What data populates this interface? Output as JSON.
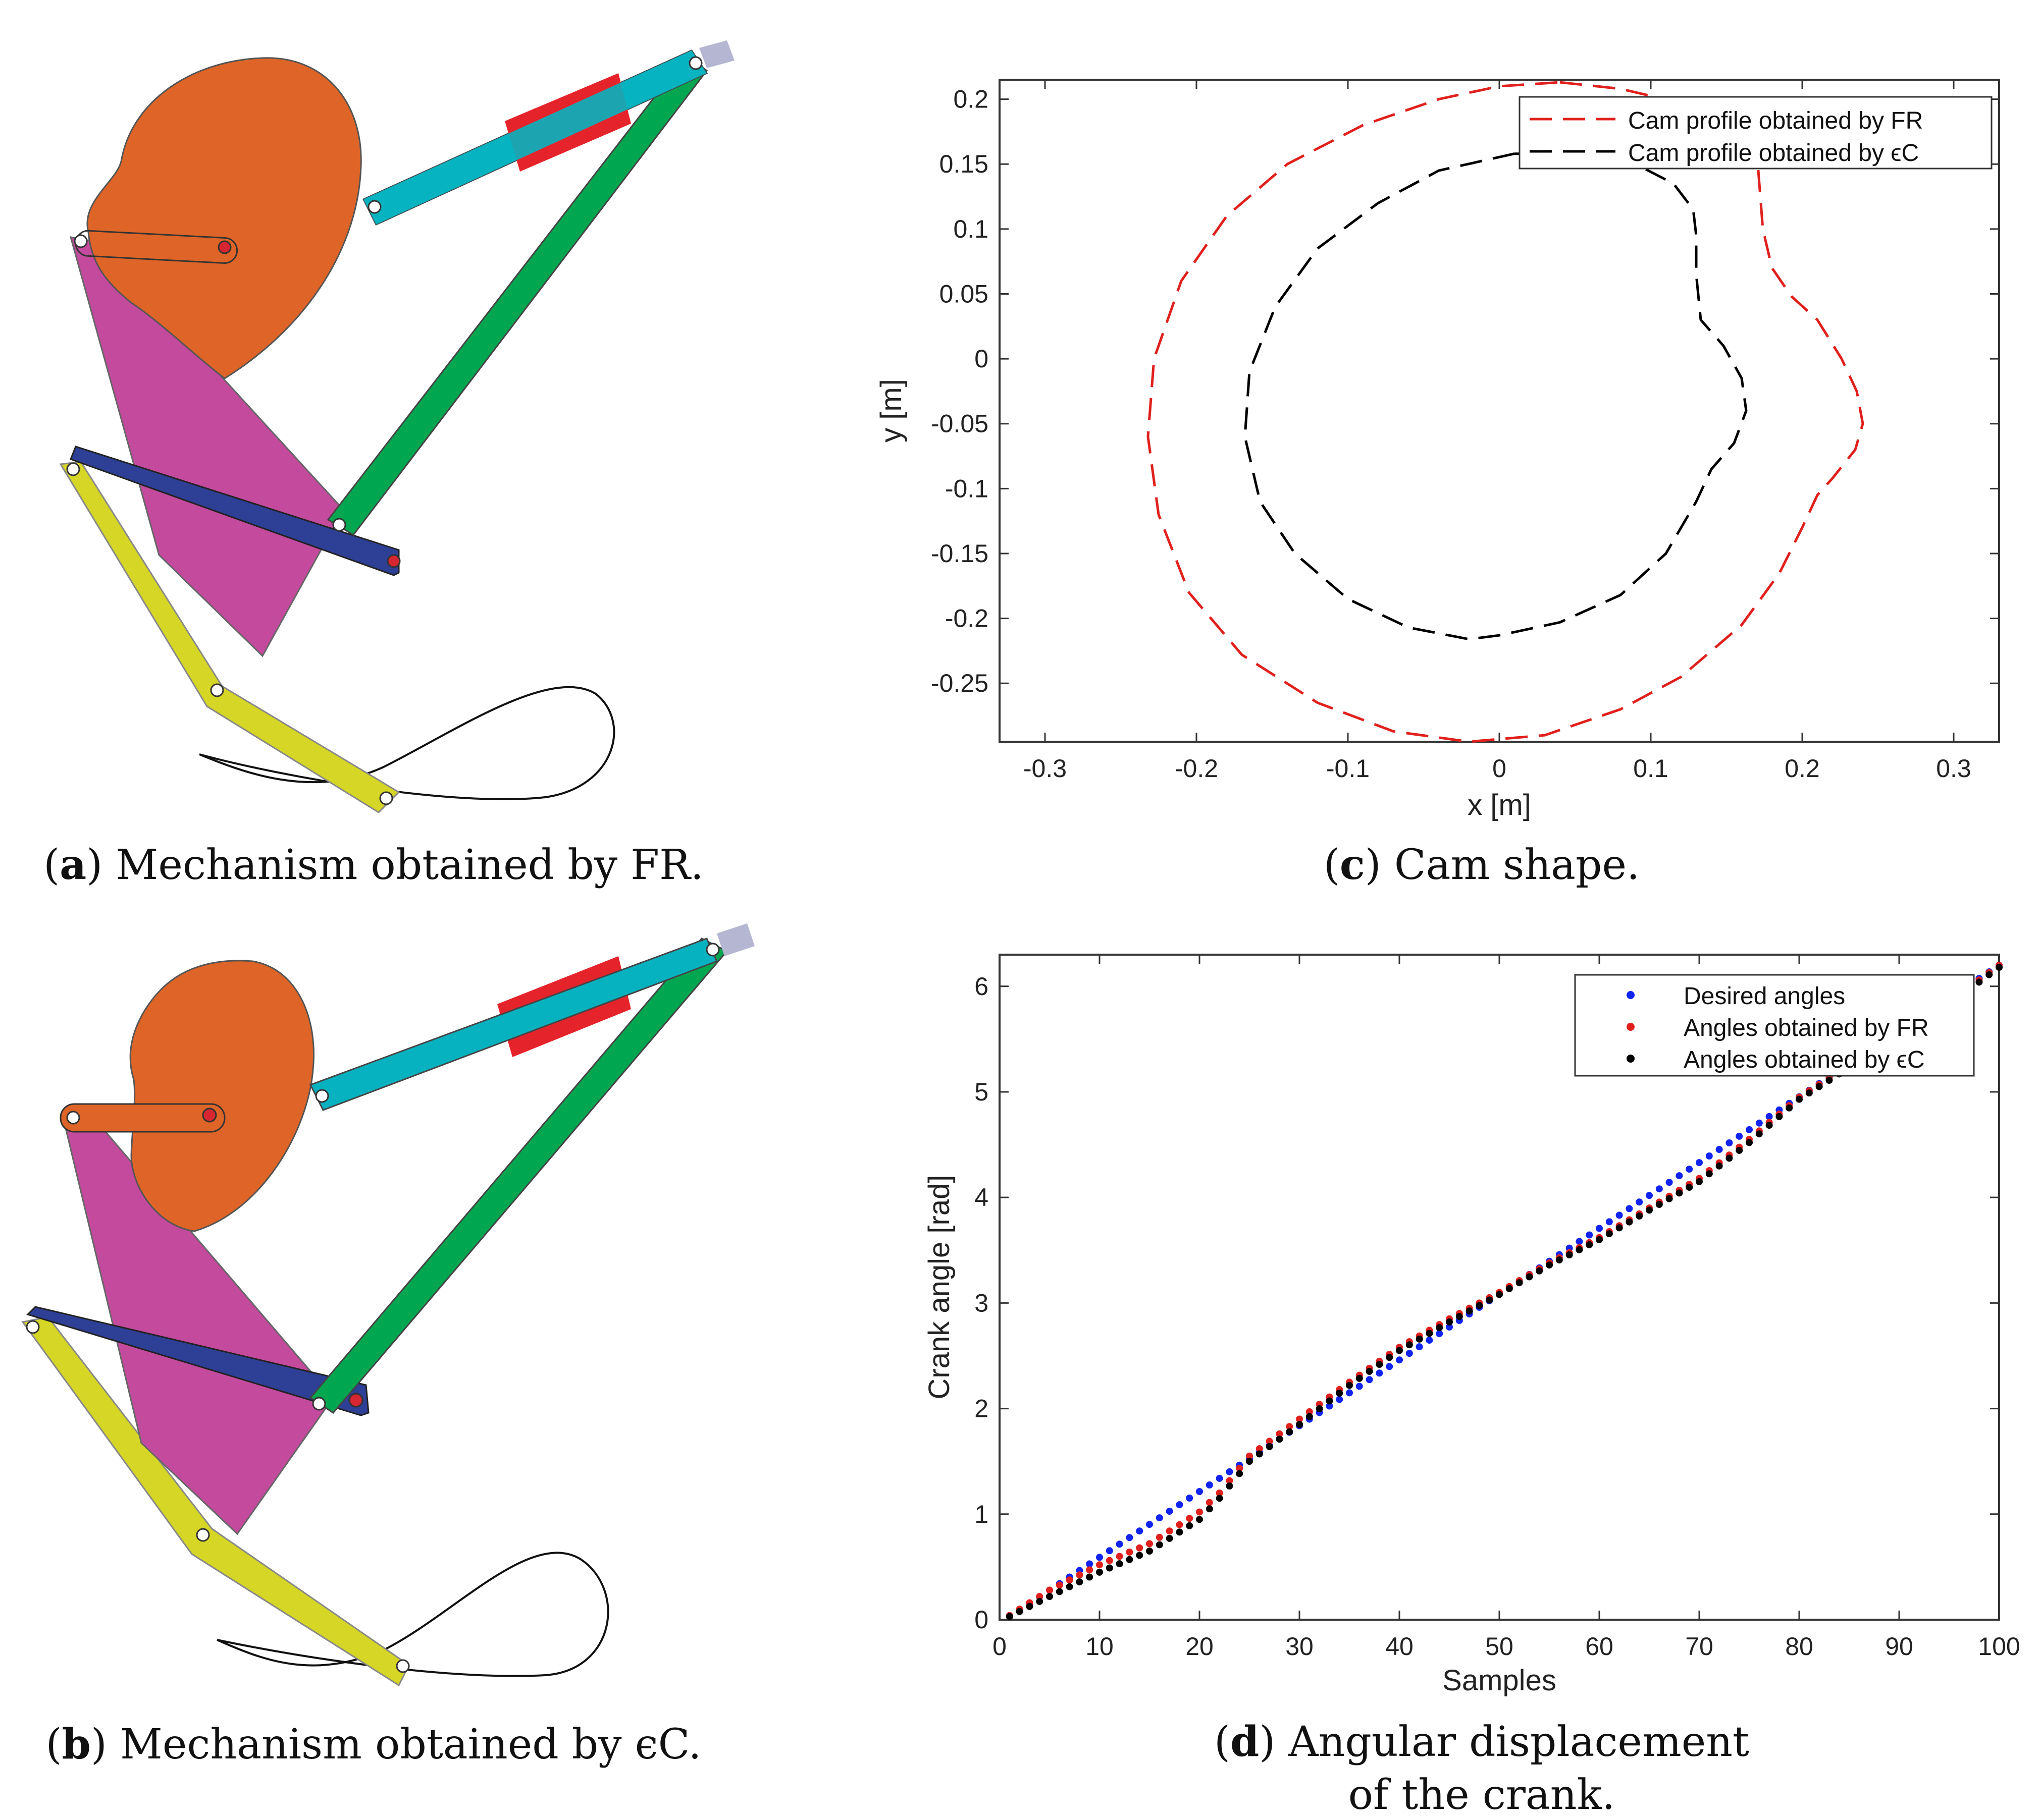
{
  "captions": {
    "a": {
      "letter": "a",
      "text": " Mechanism obtained by FR."
    },
    "b": {
      "letter": "b",
      "text": " Mechanism obtained by ϵC."
    },
    "c": {
      "letter": "c",
      "text": " Cam shape."
    },
    "d": {
      "letter": "d",
      "text": " Angular displacement",
      "line2": "of the crank."
    }
  },
  "colors": {
    "cam": "#de6527",
    "coupler": "#c34a9d",
    "blue_link": "#2e3f96",
    "yellow_link": "#d5d625",
    "green_link": "#00a650",
    "cyan_link": "#07b2c0",
    "slider": "#e5232a",
    "ground": "#b4b6d2",
    "fr": "#e0201c",
    "ec": "#000000",
    "desired": "#1024ee"
  },
  "chart_data": [
    {
      "id": "c",
      "type": "line",
      "xlabel": "x [m]",
      "ylabel": "y [m]",
      "xlim": [
        -0.33,
        0.33
      ],
      "ylim": [
        -0.295,
        0.215
      ],
      "xticks": [
        -0.3,
        -0.2,
        -0.1,
        0,
        0.1,
        0.2,
        0.3
      ],
      "xtick_labels": [
        "-0.3",
        "-0.2",
        "-0.1",
        "0",
        "0.1",
        "0.2",
        "0.3"
      ],
      "yticks": [
        0.2,
        0.15,
        0.1,
        0.05,
        0,
        -0.05,
        -0.1,
        -0.15,
        -0.2,
        -0.25
      ],
      "ytick_labels": [
        "0.2",
        "0.15",
        "0.1",
        "0.05",
        "0",
        "-0.05",
        "-0.1",
        "-0.15",
        "-0.2",
        "-0.25"
      ],
      "legend_position": "top-right",
      "series": [
        {
          "name": "Cam profile obtained by FR",
          "style": "dashed",
          "color": "#e0201c",
          "points": [
            [
              0.04,
              0.213
            ],
            [
              0.08,
              0.208
            ],
            [
              0.12,
              0.197
            ],
            [
              0.155,
              0.178
            ],
            [
              0.17,
              0.16
            ],
            [
              0.172,
              0.13
            ],
            [
              0.174,
              0.1
            ],
            [
              0.18,
              0.07
            ],
            [
              0.193,
              0.048
            ],
            [
              0.21,
              0.03
            ],
            [
              0.226,
              0.0
            ],
            [
              0.236,
              -0.025
            ],
            [
              0.24,
              -0.05
            ],
            [
              0.235,
              -0.07
            ],
            [
              0.22,
              -0.092
            ],
            [
              0.21,
              -0.105
            ],
            [
              0.2,
              -0.13
            ],
            [
              0.185,
              -0.165
            ],
            [
              0.16,
              -0.205
            ],
            [
              0.12,
              -0.245
            ],
            [
              0.08,
              -0.27
            ],
            [
              0.03,
              -0.29
            ],
            [
              -0.02,
              -0.295
            ],
            [
              -0.07,
              -0.287
            ],
            [
              -0.12,
              -0.265
            ],
            [
              -0.17,
              -0.228
            ],
            [
              -0.205,
              -0.18
            ],
            [
              -0.225,
              -0.12
            ],
            [
              -0.232,
              -0.06
            ],
            [
              -0.228,
              0.0
            ],
            [
              -0.21,
              0.06
            ],
            [
              -0.18,
              0.11
            ],
            [
              -0.14,
              0.15
            ],
            [
              -0.09,
              0.18
            ],
            [
              -0.04,
              0.2
            ],
            [
              0.0,
              0.21
            ],
            [
              0.04,
              0.213
            ]
          ]
        },
        {
          "name": "Cam profile obtained by ϵC",
          "style": "dashed",
          "color": "#000000",
          "points": [
            [
              0.01,
              0.158
            ],
            [
              0.05,
              0.157
            ],
            [
              0.09,
              0.15
            ],
            [
              0.115,
              0.135
            ],
            [
              0.128,
              0.115
            ],
            [
              0.13,
              0.095
            ],
            [
              0.13,
              0.065
            ],
            [
              0.133,
              0.03
            ],
            [
              0.148,
              0.01
            ],
            [
              0.16,
              -0.015
            ],
            [
              0.163,
              -0.04
            ],
            [
              0.155,
              -0.065
            ],
            [
              0.14,
              -0.085
            ],
            [
              0.13,
              -0.11
            ],
            [
              0.11,
              -0.15
            ],
            [
              0.08,
              -0.182
            ],
            [
              0.04,
              -0.203
            ],
            [
              0.0,
              -0.213
            ],
            [
              -0.02,
              -0.216
            ],
            [
              -0.06,
              -0.207
            ],
            [
              -0.1,
              -0.185
            ],
            [
              -0.135,
              -0.15
            ],
            [
              -0.158,
              -0.11
            ],
            [
              -0.168,
              -0.06
            ],
            [
              -0.165,
              -0.01
            ],
            [
              -0.148,
              0.04
            ],
            [
              -0.12,
              0.085
            ],
            [
              -0.08,
              0.12
            ],
            [
              -0.04,
              0.145
            ],
            [
              0.01,
              0.158
            ]
          ]
        }
      ]
    },
    {
      "id": "d",
      "type": "scatter",
      "xlabel": "Samples",
      "ylabel": "Crank angle [rad]",
      "xlim": [
        0,
        100
      ],
      "ylim": [
        0,
        6.3
      ],
      "xticks": [
        0,
        10,
        20,
        30,
        40,
        50,
        60,
        70,
        80,
        90,
        100
      ],
      "xtick_labels": [
        "0",
        "10",
        "20",
        "30",
        "40",
        "50",
        "60",
        "70",
        "80",
        "90",
        "100"
      ],
      "yticks": [
        0,
        1,
        2,
        3,
        4,
        5,
        6
      ],
      "ytick_labels": [
        "0",
        "1",
        "2",
        "3",
        "4",
        "5",
        "6"
      ],
      "legend_position": "top-right",
      "series": [
        {
          "name": "Desired angles",
          "color": "#1024ee",
          "x_start": 1,
          "x_end": 100,
          "step": 1,
          "knots": [
            [
              1,
              0.03
            ],
            [
              100,
              6.2
            ]
          ]
        },
        {
          "name": "Angles obtained by FR",
          "color": "#e0201c",
          "x_start": 1,
          "x_end": 100,
          "step": 1,
          "knots": [
            [
              1,
              0.04
            ],
            [
              5,
              0.28
            ],
            [
              10,
              0.52
            ],
            [
              15,
              0.72
            ],
            [
              20,
              1.02
            ],
            [
              22,
              1.2
            ],
            [
              25,
              1.55
            ],
            [
              30,
              1.9
            ],
            [
              35,
              2.25
            ],
            [
              40,
              2.58
            ],
            [
              45,
              2.85
            ],
            [
              50,
              3.1
            ],
            [
              55,
              3.38
            ],
            [
              60,
              3.62
            ],
            [
              65,
              3.9
            ],
            [
              70,
              4.18
            ],
            [
              75,
              4.55
            ],
            [
              80,
              4.95
            ],
            [
              85,
              5.25
            ],
            [
              90,
              5.55
            ],
            [
              95,
              5.85
            ],
            [
              100,
              6.2
            ]
          ]
        },
        {
          "name": "Angles obtained by ϵC",
          "color": "#000000",
          "x_start": 1,
          "x_end": 100,
          "step": 1,
          "knots": [
            [
              1,
              0.03
            ],
            [
              5,
              0.22
            ],
            [
              10,
              0.45
            ],
            [
              15,
              0.65
            ],
            [
              20,
              0.95
            ],
            [
              22,
              1.15
            ],
            [
              25,
              1.5
            ],
            [
              30,
              1.85
            ],
            [
              35,
              2.22
            ],
            [
              40,
              2.55
            ],
            [
              45,
              2.82
            ],
            [
              50,
              3.08
            ],
            [
              55,
              3.36
            ],
            [
              60,
              3.6
            ],
            [
              65,
              3.88
            ],
            [
              70,
              4.15
            ],
            [
              75,
              4.52
            ],
            [
              80,
              4.93
            ],
            [
              85,
              5.23
            ],
            [
              90,
              5.53
            ],
            [
              95,
              5.83
            ],
            [
              100,
              6.18
            ]
          ]
        }
      ]
    }
  ]
}
